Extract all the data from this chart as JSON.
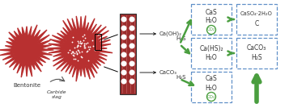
{
  "bentonite_color": "#b83030",
  "carbide_color": "#b83030",
  "box_edge_color": "#6090c8",
  "arrow_color": "#4a9e3f",
  "text_color": "#333333",
  "labels": {
    "bentonite": "Bentonite",
    "carbide_slag": "Carbide\nslag",
    "ca_oh2": "Ca(OH)₂",
    "ca_co3": "CaCO₃",
    "h2s_1": "H₂S",
    "h2s_2": "H₂S",
    "box1_line1": "CaS",
    "box1_line2": "H₂O",
    "box1_circle": "CO₂",
    "box2_line1": "Ca(HS)₂",
    "box2_line2": "H₂O",
    "box3_line1": "CaS",
    "box3_line2": "H₂O",
    "box3_circle": "CO₂",
    "box4_line1": "CaSO₄·2H₂O",
    "box4_line2": "C",
    "box5_line1": "CaCO₃",
    "box5_line2": "H₂S"
  },
  "figsize": [
    3.78,
    1.39
  ],
  "dpi": 100
}
